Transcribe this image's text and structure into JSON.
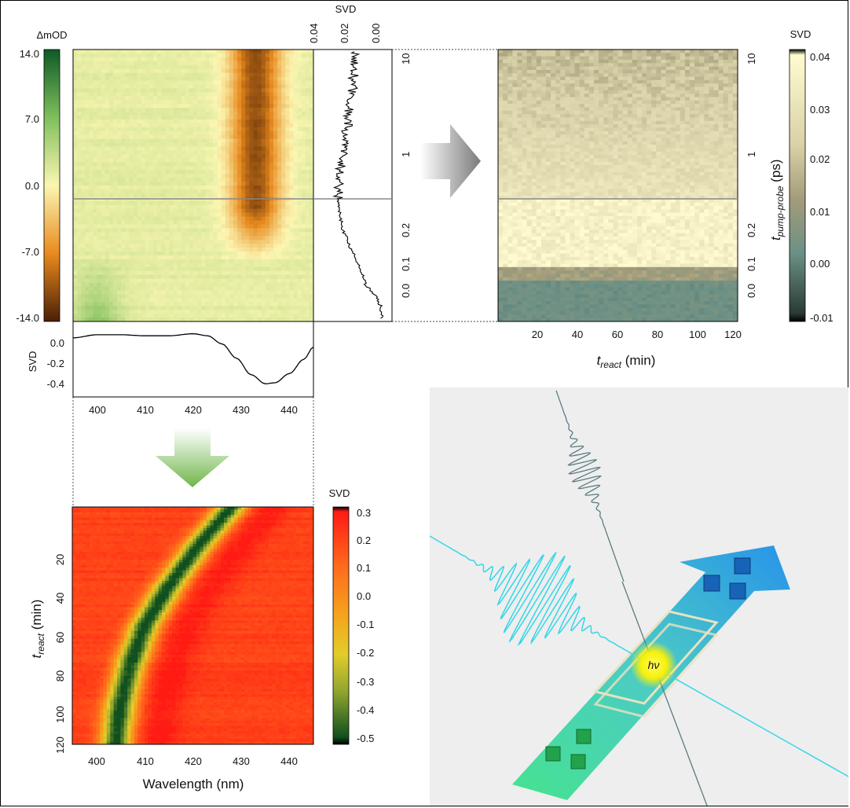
{
  "chart_data": [
    {
      "type": "heatmap",
      "panel": "transient absorption map",
      "colorbar": {
        "label": "ΔmOD",
        "ticks": [
          "14.0",
          "7.0",
          "0.0",
          "-7.0",
          "-14.0"
        ],
        "range": [
          -14,
          14
        ]
      },
      "xlim": [
        395,
        445
      ],
      "features": {
        "negative_band_center_nm": 433,
        "band_start_delay_ps": 0.0
      }
    },
    {
      "type": "line",
      "panel": "temporal SVD component",
      "title": "SVD",
      "x_ticks": [
        "0.04",
        "0.02",
        "0.00"
      ],
      "xlim": [
        0.04,
        -0.005
      ],
      "y_ticks_right": [
        "10",
        "1",
        "0.2",
        "0.1",
        "0.0"
      ],
      "points": [
        {
          "t_ps": -0.1,
          "value": 0.0
        },
        {
          "t_ps": -0.05,
          "value": 0.001
        },
        {
          "t_ps": -0.02,
          "value": 0.003
        },
        {
          "t_ps": 0.0,
          "value": 0.007
        },
        {
          "t_ps": 0.02,
          "value": 0.01
        },
        {
          "t_ps": 0.05,
          "value": 0.012
        },
        {
          "t_ps": 0.1,
          "value": 0.016
        },
        {
          "t_ps": 0.15,
          "value": 0.02
        },
        {
          "t_ps": 0.2,
          "value": 0.024
        },
        {
          "t_ps": 0.25,
          "value": 0.026
        },
        {
          "t_ps": 0.3,
          "value": 0.027
        },
        {
          "t_ps": 0.5,
          "value": 0.026
        },
        {
          "t_ps": 1.0,
          "value": 0.024
        },
        {
          "t_ps": 2.0,
          "value": 0.021
        },
        {
          "t_ps": 5.0,
          "value": 0.018
        },
        {
          "t_ps": 10.0,
          "value": 0.017
        },
        {
          "t_ps": 15.0,
          "value": 0.017
        }
      ]
    },
    {
      "type": "line",
      "panel": "spectral SVD component",
      "ylabel": "SVD",
      "x_ticks": [
        "400",
        "410",
        "420",
        "430",
        "440"
      ],
      "y_ticks": [
        "0.0",
        "-0.2",
        "-0.4"
      ],
      "xlim": [
        395,
        445
      ],
      "ylim": [
        -0.47,
        0.1
      ],
      "x": [
        395,
        400,
        405,
        410,
        415,
        420,
        423,
        426,
        429,
        432,
        435,
        437,
        440,
        443,
        445
      ],
      "values": [
        0.04,
        0.07,
        0.07,
        0.06,
        0.06,
        0.08,
        0.06,
        -0.02,
        -0.16,
        -0.32,
        -0.41,
        -0.4,
        -0.31,
        -0.17,
        -0.05
      ]
    },
    {
      "type": "heatmap",
      "panel": "SVD map vs reaction time and pump-probe delay",
      "colorbar": {
        "label": "SVD",
        "ticks": [
          "0.04",
          "0.03",
          "0.02",
          "0.01",
          "0.00",
          "-0.01"
        ],
        "range": [
          -0.01,
          0.04
        ]
      },
      "x_ticks": [
        "20",
        "40",
        "60",
        "80",
        "100",
        "120"
      ],
      "xlim": [
        0,
        120
      ],
      "xlabel": {
        "main": "t",
        "sub": "react",
        "unit": " (min)"
      },
      "y_ticks": [
        "10",
        "1",
        "0.2",
        "0.1",
        "0.0"
      ],
      "ylabel": {
        "main": "t",
        "sub": "pump-probe",
        "unit": " (ps)"
      }
    },
    {
      "type": "heatmap",
      "panel": "SVD map vs wavelength and reaction time",
      "colorbar": {
        "label": "SVD",
        "ticks": [
          "0.3",
          "0.2",
          "0.1",
          "0.0",
          "-0.1",
          "-0.2",
          "-0.3",
          "-0.4",
          "-0.5"
        ],
        "range": [
          -0.5,
          0.3
        ]
      },
      "x_ticks": [
        "400",
        "410",
        "420",
        "430",
        "440"
      ],
      "xlim": [
        395,
        445
      ],
      "xlabel": "Wavelength (nm)",
      "y_ticks": [
        "20",
        "40",
        "60",
        "80",
        "100",
        "120"
      ],
      "ylim": [
        0,
        120
      ],
      "ylabel": {
        "main": "t",
        "sub": "react",
        "unit": " (min)"
      },
      "band_center_nm": [
        {
          "t_min": 0,
          "center": 428
        },
        {
          "t_min": 20,
          "center": 421
        },
        {
          "t_min": 40,
          "center": 415
        },
        {
          "t_min": 60,
          "center": 410
        },
        {
          "t_min": 80,
          "center": 407
        },
        {
          "t_min": 100,
          "center": 405
        },
        {
          "t_min": 120,
          "center": 404
        }
      ]
    }
  ],
  "schematic": {
    "label": "hν"
  },
  "colors": {
    "green_arrow": "#6fb64a",
    "gray_arrow": "#8a8a8a",
    "probe_wave": "#33d6e8",
    "pump_wave": "#5b7c80",
    "flow_arrow_start": "#3de28a",
    "flow_arrow_end": "#1d8fe8",
    "cube_green": "#22a24a",
    "cube_blue": "#1763b8",
    "focus_spot": "#f6f00a"
  }
}
